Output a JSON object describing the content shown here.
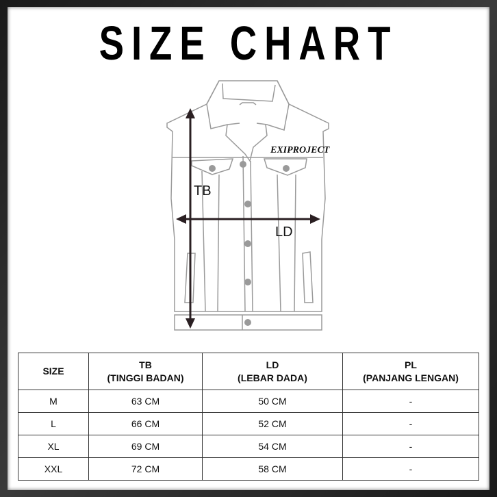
{
  "title": "SIZE CHART",
  "diagram": {
    "label_tb": "TB",
    "label_ld": "LD",
    "logo_text": "EXIPROJECT"
  },
  "table": {
    "headers": [
      {
        "line1": "SIZE",
        "line2": ""
      },
      {
        "line1": "TB",
        "line2": "(TINGGI BADAN)"
      },
      {
        "line1": "LD",
        "line2": "(LEBAR DADA)"
      },
      {
        "line1": "PL",
        "line2": "(PANJANG LENGAN)"
      }
    ],
    "rows": [
      [
        "M",
        "63 CM",
        "50 CM",
        "-"
      ],
      [
        "L",
        "66 CM",
        "52 CM",
        "-"
      ],
      [
        "XL",
        "69 CM",
        "54 CM",
        "-"
      ],
      [
        "XXL",
        "72 CM",
        "58 CM",
        "-"
      ]
    ]
  },
  "colors": {
    "outline": "#9a9a9a",
    "arrow": "#2a1f22",
    "frame": "#2a2a2a"
  }
}
